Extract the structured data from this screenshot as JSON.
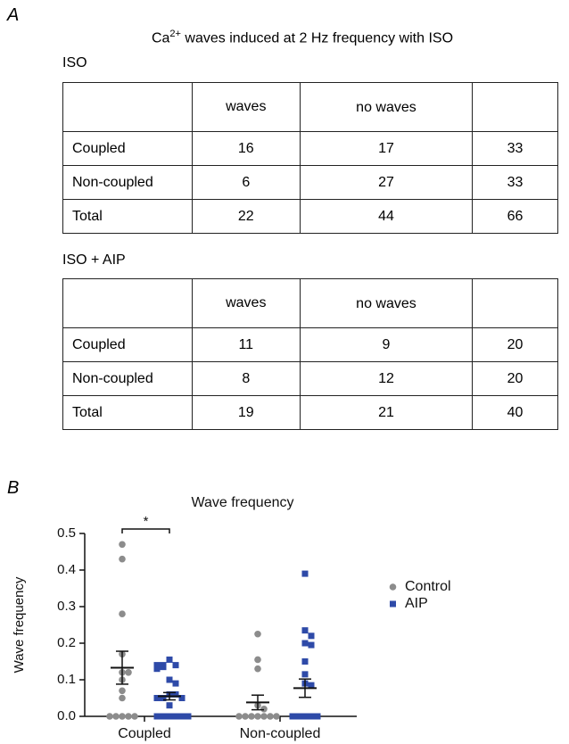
{
  "panel_a": {
    "label": "A",
    "title": {
      "main": "Ca",
      "sup": "2+",
      "rest": " waves induced at 2 Hz frequency with ISO"
    },
    "tables": [
      {
        "label": "ISO",
        "header": [
          null,
          "waves",
          "no waves",
          null
        ],
        "rows": [
          [
            "Coupled",
            "16",
            "17",
            "33"
          ],
          [
            "Non-coupled",
            "6",
            "27",
            "33"
          ],
          [
            "Total",
            "22",
            "44",
            "66"
          ]
        ]
      },
      {
        "label": "ISO + AIP",
        "header": [
          null,
          "waves",
          "no waves",
          null
        ],
        "rows": [
          [
            "Coupled",
            "11",
            "9",
            "20"
          ],
          [
            "Non-coupled",
            "8",
            "12",
            "20"
          ],
          [
            "Total",
            "19",
            "21",
            "40"
          ]
        ]
      }
    ]
  },
  "panel_b_label": "B",
  "chart_data": {
    "type": "dot",
    "title": "Wave frequency",
    "y_label": "Wave frequency",
    "categories": [
      "Coupled",
      "Non-coupled"
    ],
    "ylim": [
      0,
      0.5
    ],
    "yticks": [
      {
        "value": 0,
        "label": "0.0"
      },
      0.1,
      0.2,
      0.3,
      0.4,
      0.5
    ],
    "significance": "*",
    "series": [
      {
        "name": "Control",
        "color": "#8c8c8c",
        "marker": "circle",
        "values": [
          [
            0.47,
            0.43,
            0.28,
            0.17,
            0.12,
            0.12,
            0.1,
            0.07,
            0.05,
            0,
            0,
            0,
            0,
            0
          ],
          [
            0.225,
            0.155,
            0.13,
            0.03,
            0.02,
            0,
            0,
            0,
            0,
            0,
            0,
            0
          ]
        ],
        "means": [
          0.133,
          0.038
        ],
        "errors": [
          0.045,
          0.02
        ]
      },
      {
        "name": "AIP",
        "color": "#2e4aa8",
        "marker": "square",
        "values": [
          [
            0.155,
            0.14,
            0.14,
            0.135,
            0.14,
            0.13,
            0.1,
            0.09,
            0.06,
            0.06,
            0.05,
            0.05,
            0.05,
            0.03,
            0,
            0,
            0,
            0,
            0,
            0
          ],
          [
            0.39,
            0.235,
            0.22,
            0.2,
            0.195,
            0.15,
            0.115,
            0.09,
            0.085,
            0,
            0,
            0,
            0,
            0
          ]
        ],
        "means": [
          0.055,
          0.077
        ],
        "errors": [
          0.01,
          0.025
        ]
      }
    ]
  }
}
